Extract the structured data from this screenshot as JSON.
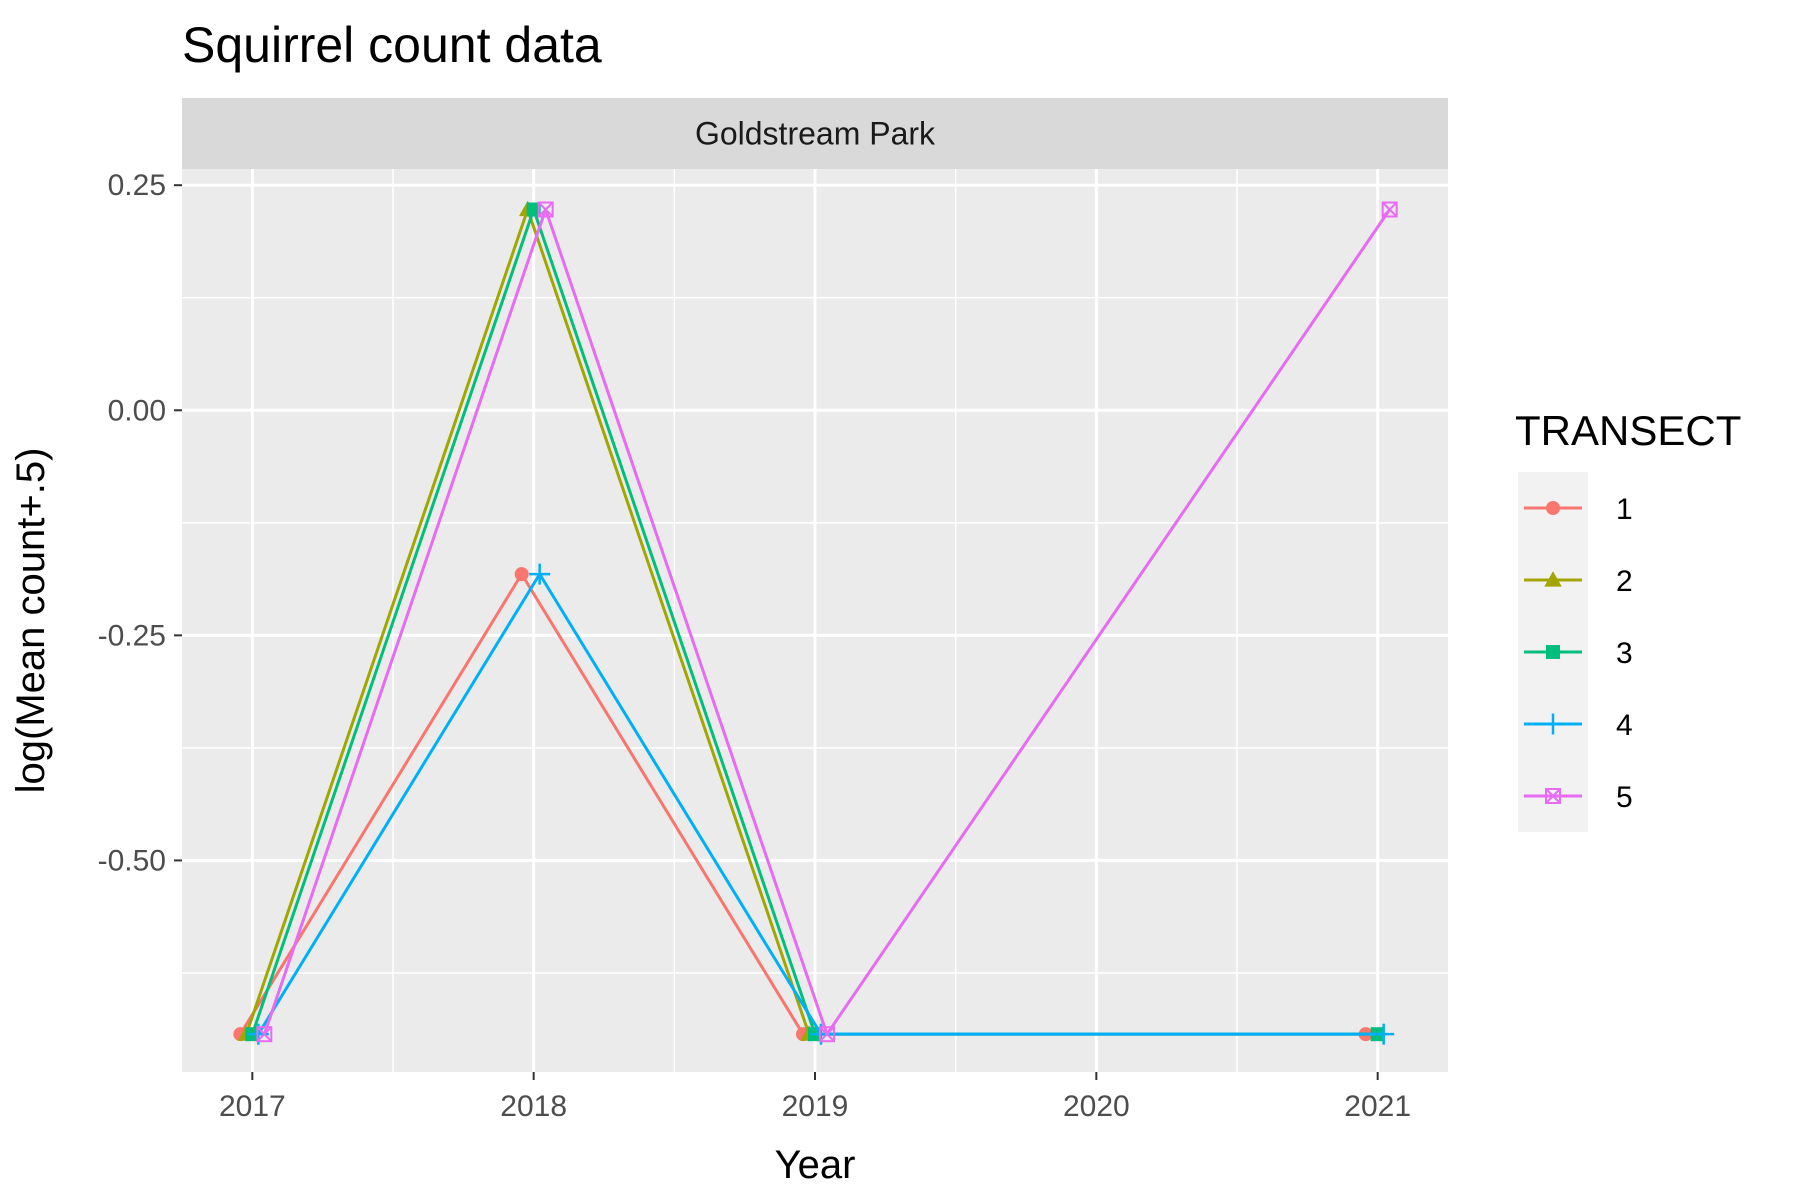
{
  "chart_data": {
    "type": "line",
    "title": "Squirrel count data",
    "facet": "Goldstream Park",
    "xlabel": "Year",
    "ylabel": "log(Mean count+.5)",
    "x_ticks": [
      2017,
      2018,
      2019,
      2020,
      2021
    ],
    "y_ticks": [
      0.25,
      0.0,
      -0.25,
      -0.5
    ],
    "y_tick_labels": [
      "0.25",
      "0.00",
      "-0.25",
      "-0.50"
    ],
    "xlim": [
      2016.75,
      2021.25
    ],
    "ylim": [
      -0.735,
      0.268
    ],
    "grid": true,
    "legend_title": "TRANSECT",
    "legend_position": "right",
    "series": [
      {
        "name": "1",
        "color": "#F8766D",
        "shape": "circle",
        "x": [
          2017,
          2018,
          2019,
          2021
        ],
        "y": [
          -0.693,
          -0.182,
          -0.693,
          -0.693
        ]
      },
      {
        "name": "2",
        "color": "#A3A500",
        "shape": "triangle",
        "x": [
          2017,
          2018,
          2019
        ],
        "y": [
          -0.693,
          0.223,
          -0.693
        ]
      },
      {
        "name": "3",
        "color": "#00BF7D",
        "shape": "square",
        "x": [
          2017,
          2018,
          2019,
          2021
        ],
        "y": [
          -0.693,
          0.223,
          -0.693,
          -0.693
        ]
      },
      {
        "name": "4",
        "color": "#00B0F6",
        "shape": "plus",
        "x": [
          2017,
          2018,
          2019,
          2021
        ],
        "y": [
          -0.693,
          -0.182,
          -0.693,
          -0.693
        ]
      },
      {
        "name": "5",
        "color": "#E76BF3",
        "shape": "square-cross",
        "x": [
          2017,
          2018,
          2019,
          2021
        ],
        "y": [
          -0.693,
          0.223,
          -0.693,
          0.223
        ]
      }
    ]
  }
}
